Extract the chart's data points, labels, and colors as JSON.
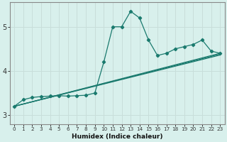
{
  "xlabel": "Humidex (Indice chaleur)",
  "ylabel": "",
  "x": [
    0,
    1,
    2,
    3,
    4,
    5,
    6,
    7,
    8,
    9,
    10,
    11,
    12,
    13,
    14,
    15,
    16,
    17,
    18,
    19,
    20,
    21,
    22,
    23
  ],
  "y_main": [
    3.2,
    3.35,
    3.4,
    3.42,
    3.43,
    3.44,
    3.43,
    3.44,
    3.45,
    3.5,
    4.2,
    5.0,
    5.0,
    5.35,
    5.2,
    4.7,
    4.35,
    4.4,
    4.5,
    4.55,
    4.6,
    4.7,
    4.45,
    4.4
  ],
  "y_line1_start": 3.2,
  "y_line1_end": 4.4,
  "y_line2_start": 3.2,
  "y_line2_end": 4.38,
  "y_line3_start": 3.2,
  "y_line3_end": 4.36,
  "line_color": "#1a7a6e",
  "bg_color": "#d8f0ec",
  "grid_color": "#c8deda",
  "ylim": [
    2.8,
    5.55
  ],
  "xlim": [
    -0.5,
    23.5
  ],
  "yticks": [
    3,
    4,
    5
  ],
  "xtick_labels": [
    "0",
    "1",
    "2",
    "3",
    "4",
    "5",
    "6",
    "7",
    "8",
    "9",
    "10",
    "11",
    "12",
    "13",
    "14",
    "15",
    "16",
    "17",
    "18",
    "19",
    "20",
    "21",
    "22",
    "23"
  ],
  "xlabel_fontsize": 6.5,
  "ytick_fontsize": 7,
  "xtick_fontsize": 5.2
}
